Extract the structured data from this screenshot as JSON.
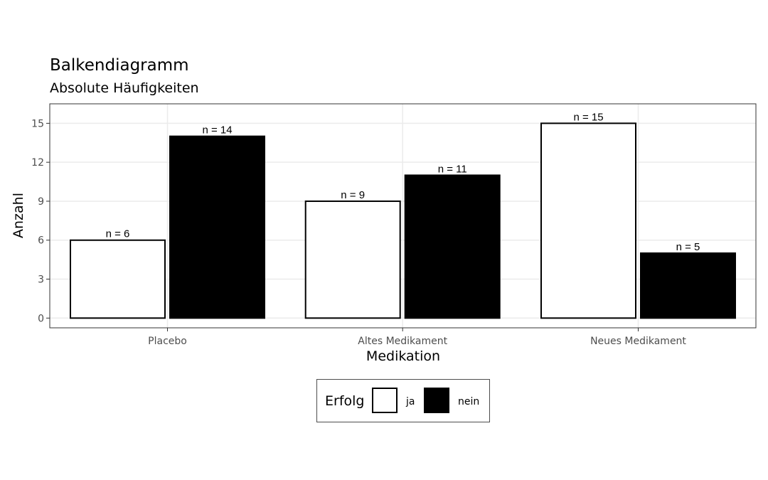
{
  "chart_data": {
    "type": "bar",
    "title": "Balkendiagramm",
    "subtitle": "Absolute Häufigkeiten",
    "xlabel": "Medikation",
    "ylabel": "Anzahl",
    "categories": [
      "Placebo",
      "Altes Medikament",
      "Neues Medikament"
    ],
    "series": [
      {
        "name": "ja",
        "values": [
          6,
          9,
          15
        ],
        "color": "#ffffff"
      },
      {
        "name": "nein",
        "values": [
          14,
          11,
          5
        ],
        "color": "#000000"
      }
    ],
    "data_labels": [
      [
        "n = 6",
        "n = 9",
        "n = 15"
      ],
      [
        "n = 14",
        "n = 11",
        "n = 5"
      ]
    ],
    "yticks": [
      0,
      3,
      6,
      9,
      12,
      15
    ],
    "ylim": [
      -0.75,
      16.5
    ],
    "grid": true,
    "legend": {
      "title": "Erfolg",
      "placement": "bottom"
    }
  }
}
